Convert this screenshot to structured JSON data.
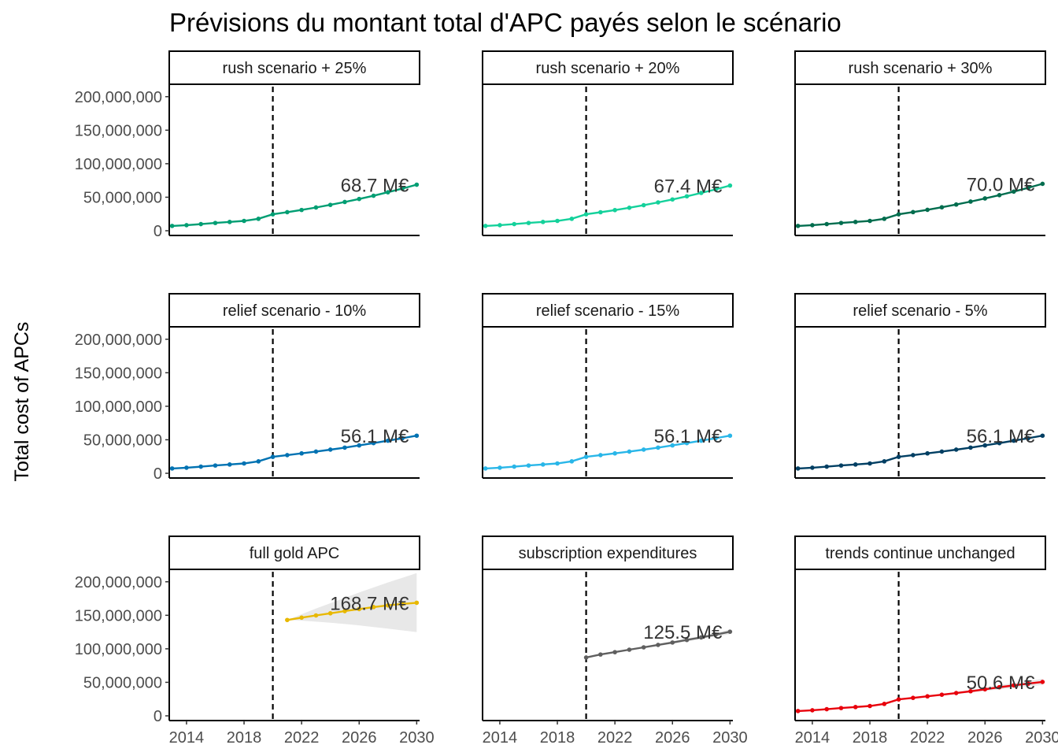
{
  "chart_data": {
    "type": "line",
    "title": "Prévisions du montant total d'APC payés selon le scénario",
    "xlabel": "",
    "ylabel": "Total cost of APCs",
    "xlim": [
      2012.8,
      2030.2
    ],
    "ylim": [
      0,
      215000000
    ],
    "x_ticks": [
      "2014",
      "2018",
      "2022",
      "2026",
      "2030"
    ],
    "y_ticks": [
      "0",
      "50,000,000",
      "100,000,000",
      "150,000,000",
      "200,000,000"
    ],
    "reference_line_x": 2020,
    "grid": false,
    "legend": "none",
    "x": [
      2013,
      2014,
      2015,
      2016,
      2017,
      2018,
      2019,
      2020,
      2021,
      2022,
      2023,
      2024,
      2025,
      2026,
      2027,
      2028,
      2029,
      2030
    ],
    "panels": [
      {
        "name": "rush scenario + 25%",
        "color": "#009E73",
        "label": "68.7 M€",
        "values": [
          7200000,
          8300000,
          9900000,
          11600000,
          13100000,
          14700000,
          17800000,
          24500000,
          27700000,
          31000000,
          34700000,
          38600000,
          42900000,
          47400000,
          52200000,
          57400000,
          62900000,
          68700000
        ]
      },
      {
        "name": "rush scenario + 20%",
        "color": "#14D19B",
        "label": "67.4 M€",
        "values": [
          7200000,
          8300000,
          9900000,
          11600000,
          13100000,
          14700000,
          17800000,
          24500000,
          27600000,
          30800000,
          34300000,
          38100000,
          42300000,
          46700000,
          51400000,
          56400000,
          61700000,
          67400000
        ]
      },
      {
        "name": "rush scenario + 30%",
        "color": "#006D4E",
        "label": "70.0 M€",
        "values": [
          7200000,
          8300000,
          9900000,
          11600000,
          13100000,
          14700000,
          17800000,
          24500000,
          27800000,
          31200000,
          35000000,
          39100000,
          43500000,
          48200000,
          53100000,
          58400000,
          64000000,
          70000000
        ]
      },
      {
        "name": "relief scenario - 10%",
        "color": "#0072B2",
        "label": "56.1 M€",
        "values": [
          7200000,
          8300000,
          9900000,
          11600000,
          13100000,
          14700000,
          17800000,
          24500000,
          27100000,
          29700000,
          32400000,
          35300000,
          38300000,
          41600000,
          45000000,
          48600000,
          52300000,
          56100000
        ]
      },
      {
        "name": "relief scenario - 15%",
        "color": "#29B6E8",
        "label": "56.1 M€",
        "values": [
          7200000,
          8300000,
          9900000,
          11600000,
          13100000,
          14700000,
          17800000,
          24500000,
          27100000,
          29700000,
          32400000,
          35300000,
          38300000,
          41600000,
          45000000,
          48600000,
          52300000,
          56100000
        ]
      },
      {
        "name": "relief scenario - 5%",
        "color": "#003F63",
        "label": "56.1 M€",
        "values": [
          7200000,
          8300000,
          9900000,
          11600000,
          13100000,
          14700000,
          17800000,
          24500000,
          27100000,
          29700000,
          32400000,
          35300000,
          38300000,
          41600000,
          45000000,
          48600000,
          52300000,
          56100000
        ]
      },
      {
        "name": "full gold APC",
        "color": "#E8B800",
        "label": "168.7 M€",
        "values": [
          null,
          null,
          null,
          null,
          null,
          null,
          null,
          null,
          143000000,
          146500000,
          149800000,
          153000000,
          156200000,
          159300000,
          162300000,
          164800000,
          166900000,
          168700000
        ],
        "band_low": [
          null,
          null,
          null,
          null,
          null,
          null,
          null,
          null,
          143000000,
          142000000,
          140500000,
          139000000,
          137000000,
          135000000,
          132500000,
          130000000,
          127500000,
          125000000
        ],
        "band_high": [
          null,
          null,
          null,
          null,
          null,
          null,
          null,
          null,
          143000000,
          151500000,
          160000000,
          168000000,
          176000000,
          184000000,
          191500000,
          199000000,
          206000000,
          213000000
        ]
      },
      {
        "name": "subscription expenditures",
        "color": "#5F5F5F",
        "label": "125.5 M€",
        "values": [
          null,
          null,
          null,
          null,
          null,
          null,
          null,
          87000000,
          91500000,
          95000000,
          98700000,
          102200000,
          105800000,
          109400000,
          113200000,
          117000000,
          121100000,
          125500000
        ],
        "band_low": [
          null,
          null,
          null,
          null,
          null,
          null,
          null,
          87000000,
          90800000,
          94100000,
          97500000,
          100800000,
          104100000,
          107500000,
          111000000,
          114600000,
          118400000,
          122000000
        ],
        "band_high": [
          null,
          null,
          null,
          null,
          null,
          null,
          null,
          87000000,
          92200000,
          95900000,
          99900000,
          103600000,
          107500000,
          111300000,
          115400000,
          119400000,
          123800000,
          129000000
        ]
      },
      {
        "name": "trends continue unchanged",
        "color": "#E8000B",
        "label": "50.6 M€",
        "values": [
          7200000,
          8300000,
          9900000,
          11600000,
          13100000,
          14700000,
          17800000,
          24500000,
          26800000,
          29100000,
          31500000,
          34000000,
          36700000,
          39600000,
          42700000,
          45500000,
          48000000,
          50600000
        ],
        "band_low": [
          null,
          null,
          null,
          null,
          null,
          null,
          null,
          24500000,
          26300000,
          28300000,
          30300000,
          32400000,
          34600000,
          37000000,
          39500000,
          41800000,
          43900000,
          46000000
        ],
        "band_high": [
          null,
          null,
          null,
          null,
          null,
          null,
          null,
          24500000,
          27300000,
          29900000,
          32700000,
          35600000,
          38800000,
          42200000,
          45900000,
          49200000,
          52100000,
          55200000
        ]
      }
    ]
  }
}
